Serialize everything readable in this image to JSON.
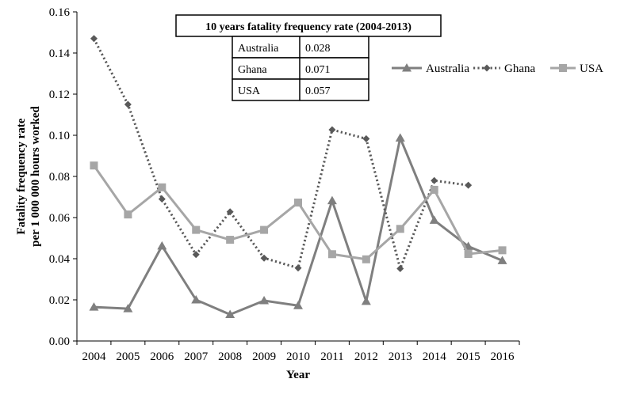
{
  "chart_data": {
    "type": "line",
    "categories": [
      "2004",
      "2005",
      "2006",
      "2007",
      "2008",
      "2009",
      "2010",
      "2011",
      "2012",
      "2013",
      "2014",
      "2015",
      "2016"
    ],
    "xlabel": "Year",
    "ylabel_line1": "Fatality frequency rate",
    "ylabel_line2": "per 1 000  000 hours worked",
    "ylim": [
      0,
      0.16
    ],
    "yticks": [
      "0.00",
      "0.02",
      "0.04",
      "0.06",
      "0.08",
      "0.10",
      "0.12",
      "0.14",
      "0.16"
    ],
    "grid": false,
    "legend_position": "right",
    "series": [
      {
        "name": "Australia",
        "marker": "triangle",
        "line_style": "solid",
        "color": "#7f7f7f",
        "values": [
          0.0165,
          0.0157,
          0.0462,
          0.02,
          0.0129,
          0.0196,
          0.0172,
          0.0682,
          0.0193,
          0.0987,
          0.0587,
          0.046,
          0.0391
        ]
      },
      {
        "name": "Ghana",
        "marker": "diamond",
        "line_style": "dotted",
        "color": "#595959",
        "values": [
          0.147,
          0.115,
          0.069,
          0.042,
          0.0628,
          0.0403,
          0.0355,
          0.1027,
          0.0983,
          0.0352,
          0.078,
          0.0757,
          null
        ]
      },
      {
        "name": "USA",
        "marker": "square",
        "line_style": "solid",
        "color": "#a6a6a6",
        "values": [
          0.0853,
          0.0615,
          0.0747,
          0.054,
          0.0492,
          0.054,
          0.0673,
          0.0422,
          0.0397,
          0.0545,
          0.0735,
          0.0423,
          0.0441
        ]
      }
    ],
    "summary_table": {
      "title": "10 years fatality frequency rate (2004-2013)",
      "rows": [
        {
          "country": "Australia",
          "value": "0.028"
        },
        {
          "country": "Ghana",
          "value": "0.071"
        },
        {
          "country": "USA",
          "value": "0.057"
        }
      ]
    }
  }
}
